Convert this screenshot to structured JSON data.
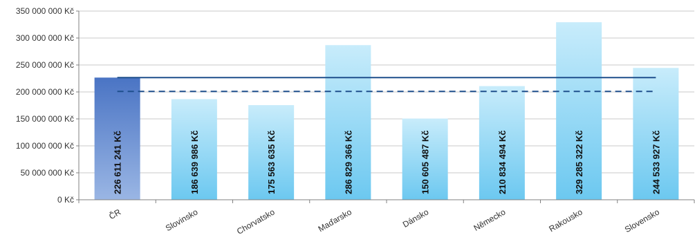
{
  "chart_data": {
    "type": "bar",
    "title": "",
    "xlabel": "",
    "ylabel": "",
    "ylim": [
      0,
      350000000
    ],
    "y_ticks": [
      "0 Kč",
      "50 000 000 Kč",
      "100 000 000 Kč",
      "150 000 000 Kč",
      "200 000 000 Kč",
      "250 000 000 Kč",
      "300 000 000 Kč",
      "350 000 000 Kč"
    ],
    "grid": true,
    "legend": "none",
    "categories": [
      "ČR",
      "Slovinsko",
      "Chorvatsko",
      "Maďarsko",
      "Dánsko",
      "Německo",
      "Rakousko",
      "Slovensko"
    ],
    "values": [
      226611241,
      186639986,
      175563635,
      286829366,
      150605487,
      210834494,
      329285322,
      244533927
    ],
    "data_labels": [
      "226 611 241 Kč",
      "186 639 986 Kč",
      "175 563 635 Kč",
      "286 829 366 Kč",
      "150 605 487 Kč",
      "210 834 494 Kč",
      "329 285 322 Kč",
      "244 533 927 Kč"
    ],
    "reference_lines": [
      {
        "style": "solid",
        "value": 226611241
      },
      {
        "style": "dashed",
        "value": 201000000
      }
    ],
    "colors": {
      "highlight_bar_top": "#4a74c4",
      "highlight_bar_bottom": "#9ab6e4",
      "bar_top": "#6cc8f0",
      "bar_bottom": "#c8ecfb",
      "reference_line": "#1e4f8c",
      "grid": "#c8c8c8",
      "axis": "#808080"
    }
  }
}
